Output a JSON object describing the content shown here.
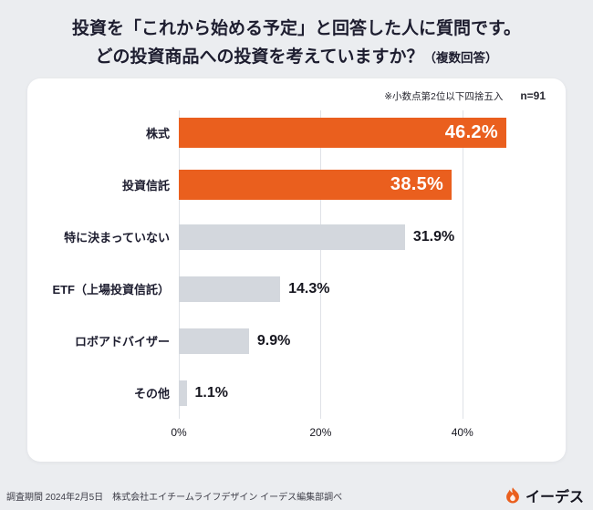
{
  "header": {
    "title_line1": "投資を「これから始める予定」と回答した人に質問です。",
    "title_line2": "どの投資商品への投資を考えていますか？",
    "title_suffix": "（複数回答）"
  },
  "meta": {
    "rounding_note": "※小数点第2位以下四捨五入",
    "sample_size": "n=91"
  },
  "chart_data": {
    "type": "bar",
    "orientation": "horizontal",
    "title": "どの投資商品への投資を考えていますか？（複数回答）",
    "categories": [
      "株式",
      "投資信託",
      "特に決まっていない",
      "ETF（上場投資信託）",
      "ロボアドバイザー",
      "その他"
    ],
    "values": [
      46.2,
      38.5,
      31.9,
      14.3,
      9.9,
      1.1
    ],
    "value_labels": [
      "46.2%",
      "38.5%",
      "31.9%",
      "14.3%",
      "9.9%",
      "1.1%"
    ],
    "bar_colors": [
      "#ea5f1e",
      "#ea5f1e",
      "#d3d7dd",
      "#d3d7dd",
      "#d3d7dd",
      "#d3d7dd"
    ],
    "value_label_inside": [
      true,
      true,
      false,
      false,
      false,
      false
    ],
    "highlight_color": "#ea5f1e",
    "muted_color": "#d3d7dd",
    "xlim": [
      0,
      52
    ],
    "x_ticks": [
      {
        "value": 0,
        "label": "0%"
      },
      {
        "value": 20,
        "label": "20%"
      },
      {
        "value": 40,
        "label": "40%"
      }
    ],
    "grid": true,
    "legend": false,
    "sample_size": "n=91"
  },
  "footer": {
    "source": "調査期間 2024年2月5日　株式会社エイチームライフデザイン イーデス編集部調べ",
    "brand": "イーデス"
  }
}
